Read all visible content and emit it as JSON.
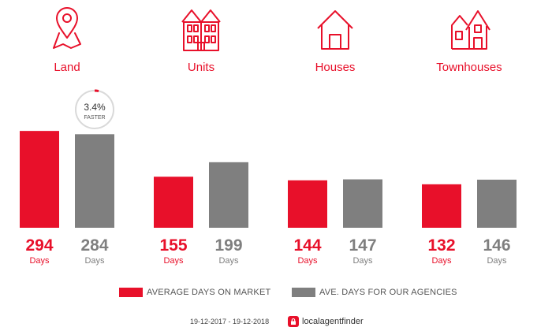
{
  "colors": {
    "accent": "#e8102a",
    "agency": "#7f7f7f",
    "badge_ring": "#d9d9d9",
    "text_dark": "#333333"
  },
  "categories": [
    {
      "label": "Land",
      "icon": "land-pin-icon"
    },
    {
      "label": "Units",
      "icon": "units-building-icon"
    },
    {
      "label": "Houses",
      "icon": "house-icon"
    },
    {
      "label": "Townhouses",
      "icon": "townhouses-icon"
    }
  ],
  "chart_data": {
    "type": "bar",
    "categories": [
      "Land",
      "Units",
      "Houses",
      "Townhouses"
    ],
    "series": [
      {
        "name": "AVERAGE DAYS ON MARKET",
        "values": [
          294,
          155,
          144,
          132
        ]
      },
      {
        "name": "AVE. DAYS FOR OUR AGENCIES",
        "values": [
          284,
          199,
          147,
          146
        ]
      }
    ],
    "value_unit": "Days",
    "ylim": [
      0,
      335
    ],
    "grid": false,
    "legend_position": "bottom",
    "annotations": [
      {
        "category": "Land",
        "series": 1,
        "value_text": "3.4%",
        "label": "FASTER",
        "percent": 3.4
      }
    ]
  },
  "legend": {
    "market": "AVERAGE DAYS ON MARKET",
    "agency": "AVE. DAYS FOR OUR AGENCIES"
  },
  "footer": {
    "date_range": "19-12-2017 - 19-12-2018",
    "brand": "localagentfinder",
    "brand_icon": "lock-icon"
  }
}
